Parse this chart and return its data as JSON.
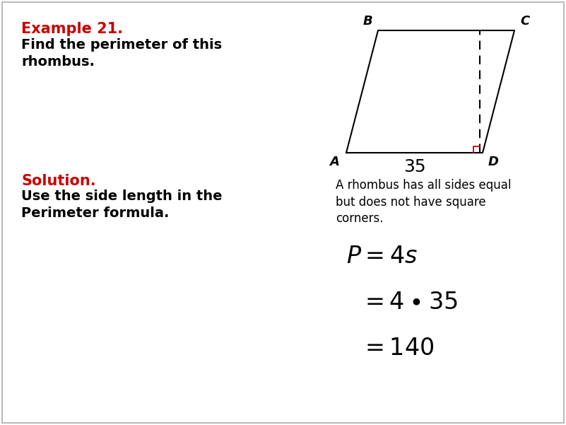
{
  "background_color": "#ffffff",
  "title_color": "#cc0000",
  "text_color": "#000000",
  "example_title": "Example 21.",
  "example_desc_line1": "Find the perimeter of this",
  "example_desc_line2": "rhombus.",
  "solution_title": "Solution.",
  "solution_desc_line1": "Use the side length in the",
  "solution_desc_line2": "Perimeter formula.",
  "rhombus_note": "A rhombus has all sides equal\nbut does not have square\ncorners.",
  "side_label": "35",
  "formula_line1": "$P = 4s$",
  "formula_line2": "$= 4 \\bullet 35$",
  "formula_line3": "$= 140$"
}
